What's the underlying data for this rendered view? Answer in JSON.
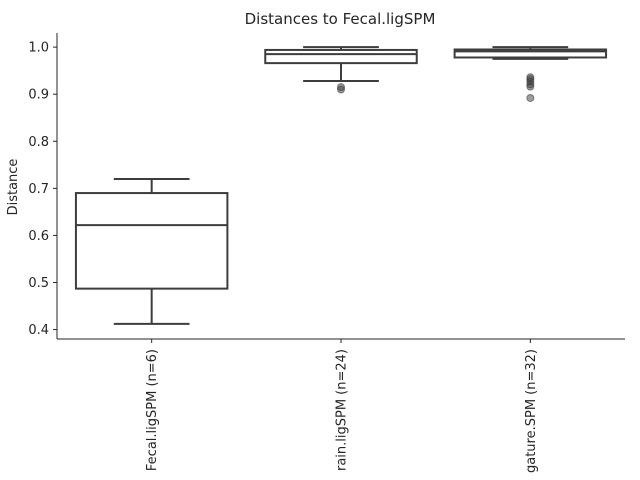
{
  "chart_data": {
    "type": "box",
    "title": "Distances to Fecal.ligSPM",
    "xlabel": "",
    "ylabel": "Distance",
    "ylim": [
      0.38,
      1.03
    ],
    "yticks": [
      "0.4",
      "0.5",
      "0.6",
      "0.7",
      "0.8",
      "0.9",
      "1.0"
    ],
    "categories": [
      "Fecal.ligSPM (n=6)",
      "rain.ligSPM (n=24)",
      "gature.SPM (n=32)"
    ],
    "boxes": [
      {
        "whisker_low": 0.412,
        "q1": 0.487,
        "median": 0.622,
        "q3": 0.69,
        "whisker_high": 0.72,
        "fliers": []
      },
      {
        "whisker_low": 0.928,
        "q1": 0.966,
        "median": 0.985,
        "q3": 0.994,
        "whisker_high": 1.0,
        "fliers": [
          0.91,
          0.915
        ]
      },
      {
        "whisker_low": 0.975,
        "q1": 0.978,
        "median": 0.991,
        "q3": 0.995,
        "whisker_high": 1.0,
        "fliers": [
          0.892,
          0.916,
          0.921,
          0.927,
          0.932,
          0.936
        ]
      }
    ],
    "grid": false,
    "legend": "none"
  }
}
